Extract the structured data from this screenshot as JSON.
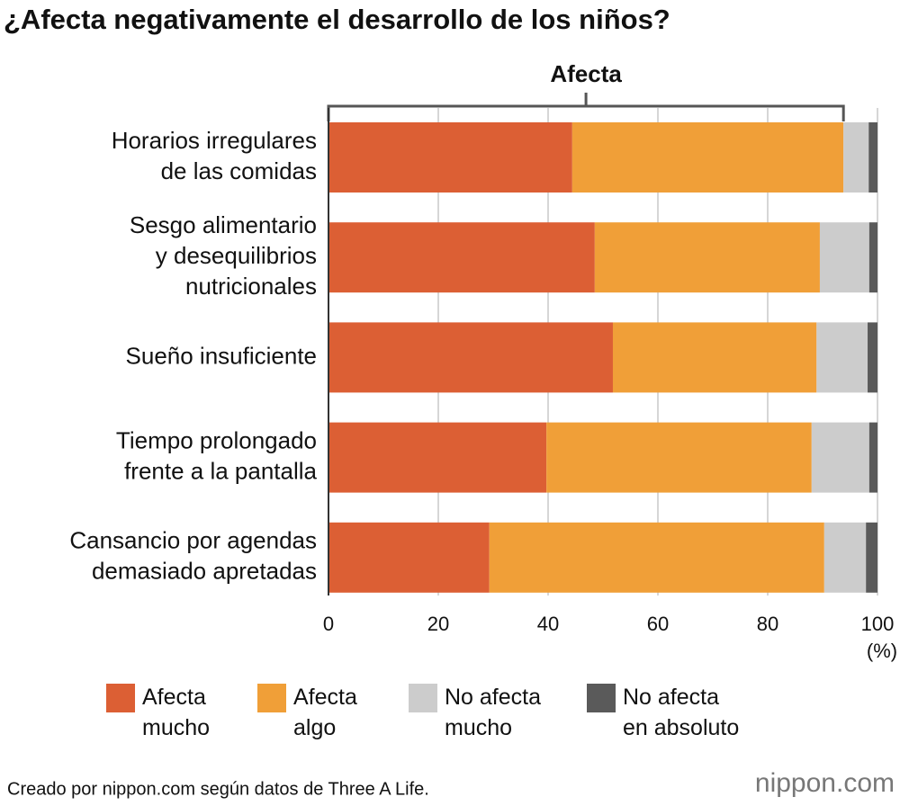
{
  "chart_data": {
    "type": "stacked_bar_horizontal",
    "title": "¿Afecta negativamente el desarrollo de los niños?",
    "bracket_label": "Afecta",
    "x_unit": "(%)",
    "categories": [
      [
        "Horarios irregulares",
        "de las comidas"
      ],
      [
        "Sesgo alimentario",
        "y desequilibrios",
        "nutricionales"
      ],
      [
        "Sueño insuficiente"
      ],
      [
        "Tiempo prolongado",
        "frente a la pantalla"
      ],
      [
        "Cansancio por agendas",
        "demasiado apretadas"
      ]
    ],
    "series": [
      {
        "name": "Afecta mucho",
        "color": "#dc5f34",
        "values": [
          44.4,
          48.5,
          51.8,
          39.7,
          29.3
        ]
      },
      {
        "name": "Afecta algo",
        "color": "#f09f38",
        "values": [
          49.4,
          41.0,
          37.1,
          48.3,
          61.0
        ]
      },
      {
        "name": "No afecta mucho",
        "color": "#cccccc",
        "values": [
          4.6,
          9.0,
          9.3,
          10.5,
          7.6
        ]
      },
      {
        "name": "No afecta en absoluto",
        "color": "#5a5a5a",
        "values": [
          1.6,
          1.5,
          1.8,
          1.5,
          2.1
        ]
      }
    ],
    "xlim": [
      0,
      100
    ],
    "xticks": [
      0,
      20,
      40,
      60,
      80,
      100
    ],
    "grid": true,
    "source": "Creado por nippon.com según datos de Three A Life.",
    "logo": "nippon.com"
  }
}
